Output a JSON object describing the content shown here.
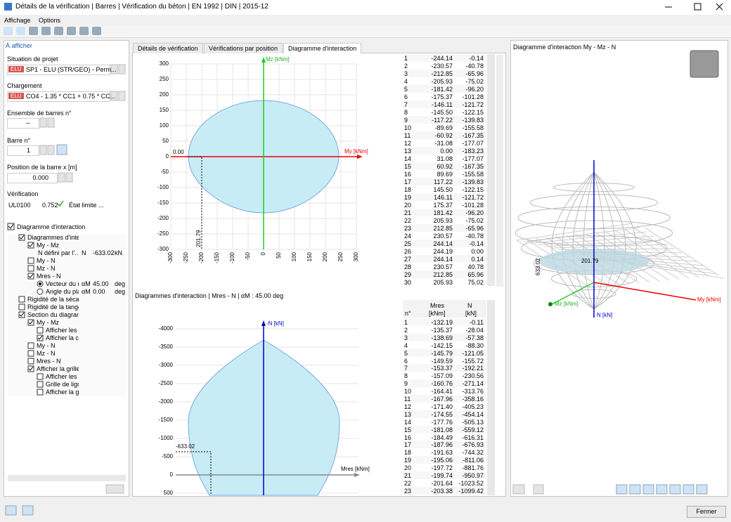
{
  "window": {
    "title": "Détails de la vérification | Barres | Vérification du béton | EN 1992 | DIN | 2015-12",
    "menu": [
      "Affichage",
      "Options"
    ]
  },
  "left_panel": {
    "header": "À afficher",
    "project_situation": {
      "label": "Situation de projet",
      "badge": "ELU",
      "value": "SP1 - ELU (STR/GEO) - Perm..."
    },
    "loading": {
      "label": "Chargement",
      "badge": "ELU",
      "value": "CO4 - 1.35 * CC1 + 0.75 * CC..."
    },
    "member_set": {
      "label": "Ensemble de barres n°",
      "value": "--"
    },
    "member": {
      "label": "Barre n°",
      "value": "1"
    },
    "position": {
      "label": "Position de la barre x [m]",
      "value": "0.000"
    },
    "check": {
      "label": "Vérification",
      "id": "UL0100",
      "ratio": "0.752",
      "type": "État limite ..."
    },
    "interaction_checkbox": "Diagramme d'interaction",
    "tree": [
      {
        "text": "Diagrammes d'intera",
        "level": 1,
        "check": true
      },
      {
        "text": "My - Mz",
        "level": 2,
        "check": true
      },
      {
        "text": "N défini par l'...",
        "level": 3,
        "symbol": "N",
        "value": "-633.02",
        "unit": "kN"
      },
      {
        "text": "My - N",
        "level": 2,
        "check": false
      },
      {
        "text": "Mz - N",
        "level": 2,
        "check": false
      },
      {
        "text": "Mres - N",
        "level": 2,
        "check": true
      },
      {
        "text": "Vecteur du m",
        "level": 3,
        "radio": true,
        "symbol": "αM",
        "value": "45.00",
        "unit": "deg"
      },
      {
        "text": "Angle du pla",
        "level": 3,
        "radio": false,
        "symbol": "αM",
        "value": "0.00",
        "unit": "deg"
      },
      {
        "text": "Rigidité de la sécante",
        "level": 1,
        "check": false
      },
      {
        "text": "Rigidité de la tangen",
        "level": 1,
        "check": false
      },
      {
        "text": "Section du diagramm",
        "level": 1,
        "check": true
      },
      {
        "text": "My - Mz",
        "level": 2,
        "check": true
      },
      {
        "text": "Afficher les vi",
        "level": 3,
        "check": false
      },
      {
        "text": "Afficher la co",
        "level": 3,
        "check": true
      },
      {
        "text": "My - N",
        "level": 2,
        "check": false
      },
      {
        "text": "Mz - N",
        "level": 2,
        "check": false
      },
      {
        "text": "Mres - N",
        "level": 2,
        "check": false
      },
      {
        "text": "Afficher la grille",
        "level": 2,
        "check": true
      },
      {
        "text": "Afficher les tr",
        "level": 3,
        "check": false
      },
      {
        "text": "Grille de lign",
        "level": 3,
        "check": false
      },
      {
        "text": "Afficher la gr",
        "level": 3,
        "check": false
      }
    ]
  },
  "tabs": [
    "Détails de vérification",
    "Vérifications par position",
    "Diagramme d'interaction"
  ],
  "top_chart": {
    "x_label": "My [kNm]",
    "y_label": "Mz [kNm]",
    "xlim": [
      -300,
      300
    ],
    "ylim": [
      -300,
      300
    ],
    "xticks": [
      -300,
      -250,
      -200,
      -150,
      -100,
      -50,
      0,
      50,
      100,
      150,
      200,
      250,
      300
    ],
    "yticks": [
      -300,
      -250,
      -200,
      -150,
      -100,
      -50,
      0,
      50,
      100,
      150,
      200,
      250,
      300
    ],
    "annotations": [
      "0.00",
      "201.79"
    ]
  },
  "top_table": {
    "rows": [
      [
        "1",
        "-244.14",
        "-0.14"
      ],
      [
        "2",
        "-230.57",
        "-40.78"
      ],
      [
        "3",
        "-212.85",
        "-65.96"
      ],
      [
        "4",
        "-205.93",
        "-75.02"
      ],
      [
        "5",
        "-181.42",
        "-96.20"
      ],
      [
        "6",
        "-175.37",
        "-101.28"
      ],
      [
        "7",
        "-146.11",
        "-121.72"
      ],
      [
        "8",
        "-145.50",
        "-122.15"
      ],
      [
        "9",
        "-117.22",
        "-139.83"
      ],
      [
        "10",
        "-89.69",
        "-155.58"
      ],
      [
        "11",
        "-60.92",
        "-167.35"
      ],
      [
        "12",
        "-31.08",
        "-177.07"
      ],
      [
        "13",
        "0.00",
        "-183.23"
      ],
      [
        "14",
        "31.08",
        "-177.07"
      ],
      [
        "15",
        "60.92",
        "-167.35"
      ],
      [
        "16",
        "89.69",
        "-155.58"
      ],
      [
        "17",
        "117.22",
        "-139.83"
      ],
      [
        "18",
        "145.50",
        "-122.15"
      ],
      [
        "19",
        "146.11",
        "-121.72"
      ],
      [
        "20",
        "175.37",
        "-101.28"
      ],
      [
        "21",
        "181.42",
        "-96.20"
      ],
      [
        "22",
        "205.93",
        "-75.02"
      ],
      [
        "23",
        "212.85",
        "-65.96"
      ],
      [
        "24",
        "230.57",
        "-40.78"
      ],
      [
        "25",
        "244.14",
        "-0.14"
      ],
      [
        "26",
        "244.19",
        "0.00"
      ],
      [
        "27",
        "244.14",
        "0.14"
      ],
      [
        "28",
        "230.57",
        "40.78"
      ],
      [
        "29",
        "212.85",
        "65.96"
      ],
      [
        "30",
        "205.93",
        "75.02"
      ]
    ]
  },
  "bottom_chart": {
    "title": "Diagrammes d'interaction | Mres - N | αM : 45.00 deg",
    "x_label": "Mres [kNm]",
    "y_label": "-N [kN]",
    "ylim": [
      500,
      -4000
    ],
    "yticks": [
      -4000,
      -3500,
      -3000,
      -2500,
      -2000,
      -1500,
      -1000,
      -500,
      0,
      500
    ],
    "annotations": [
      "-633.02"
    ]
  },
  "bottom_table": {
    "headers": [
      "n°",
      "Mres",
      "[kNm]",
      "N",
      "[kN]"
    ],
    "rows": [
      [
        "1",
        "-132.19",
        "-0.11"
      ],
      [
        "2",
        "-135.37",
        "-28.04"
      ],
      [
        "3",
        "-138.69",
        "-57.38"
      ],
      [
        "4",
        "-142.15",
        "-88.30"
      ],
      [
        "5",
        "-145.79",
        "-121.05"
      ],
      [
        "6",
        "-149.59",
        "-155.72"
      ],
      [
        "7",
        "-153.37",
        "-192.21"
      ],
      [
        "8",
        "-157.09",
        "-230.56"
      ],
      [
        "9",
        "-160.76",
        "-271.14"
      ],
      [
        "10",
        "-164.41",
        "-313.76"
      ],
      [
        "11",
        "-167.96",
        "-358.16"
      ],
      [
        "12",
        "-171.40",
        "-405.23"
      ],
      [
        "13",
        "-174.55",
        "-454.14"
      ],
      [
        "14",
        "-177.76",
        "-505.13"
      ],
      [
        "15",
        "-181.08",
        "-559.12"
      ],
      [
        "16",
        "-184.49",
        "-616.31"
      ],
      [
        "17",
        "-187.96",
        "-676.93"
      ],
      [
        "18",
        "-191.63",
        "-744.32"
      ],
      [
        "19",
        "-195.06",
        "-811.06"
      ],
      [
        "20",
        "-197.72",
        "-881.76"
      ],
      [
        "21",
        "-199.74",
        "-950.97"
      ],
      [
        "22",
        "-201.64",
        "-1023.52"
      ],
      [
        "23",
        "-203.38",
        "-1099.42"
      ]
    ]
  },
  "view3d": {
    "title": "Diagramme d'interaction My - Mz - N",
    "labels": [
      "201.79",
      "633.02",
      "My [kNm]",
      "Mz [kNm]",
      "N [kN]"
    ]
  },
  "footer": {
    "close": "Fermer"
  }
}
